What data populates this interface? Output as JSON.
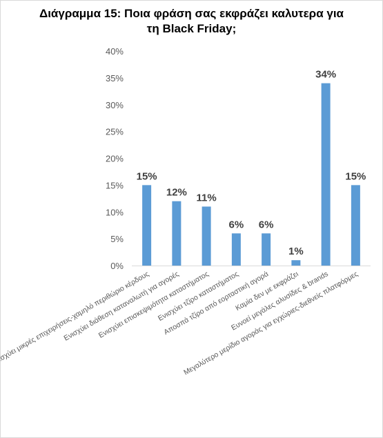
{
  "chart_data": {
    "type": "bar",
    "title_line1": "Διάγραμμα 15: Ποια φράση σας εκφράζει καλυτερα για",
    "title_line2": "τη Black Friday;",
    "xlabel": "",
    "ylabel": "",
    "categories": [
      "Δεν ενισχύει μικρές επιχειρήσεις-χαμηλό περιθώριο κέρδους",
      "Ενισχύει διάθεση καταναλωτή για αγορές",
      "Ενισχύει επισκεψιμότητα καταστήματος",
      "Ενισχύει τζίρο καταστήματος",
      "Αποσπά τζίρο από εορταστική αγορά",
      "Καμία δεν με εκφράζει",
      "Ευνοεί μεγάλες αλυσίδες & brands",
      "Μεγαλύτερο μερίδιο αγοράς για εγχώριες-διεθνείς πλατφόρμες"
    ],
    "values": [
      15,
      12,
      11,
      6,
      6,
      1,
      34,
      15
    ],
    "data_labels": [
      "15%",
      "12%",
      "11%",
      "6%",
      "6%",
      "1%",
      "34%",
      "15%"
    ],
    "yticks": [
      "0%",
      "5%",
      "10%",
      "15%",
      "20%",
      "25%",
      "30%",
      "35%",
      "40%"
    ],
    "ylim": [
      0,
      40
    ],
    "grid": false,
    "legend": "none",
    "bar_color": "#5b9bd5",
    "axis_color": "#d9d9d9",
    "label_color": "#595959"
  }
}
